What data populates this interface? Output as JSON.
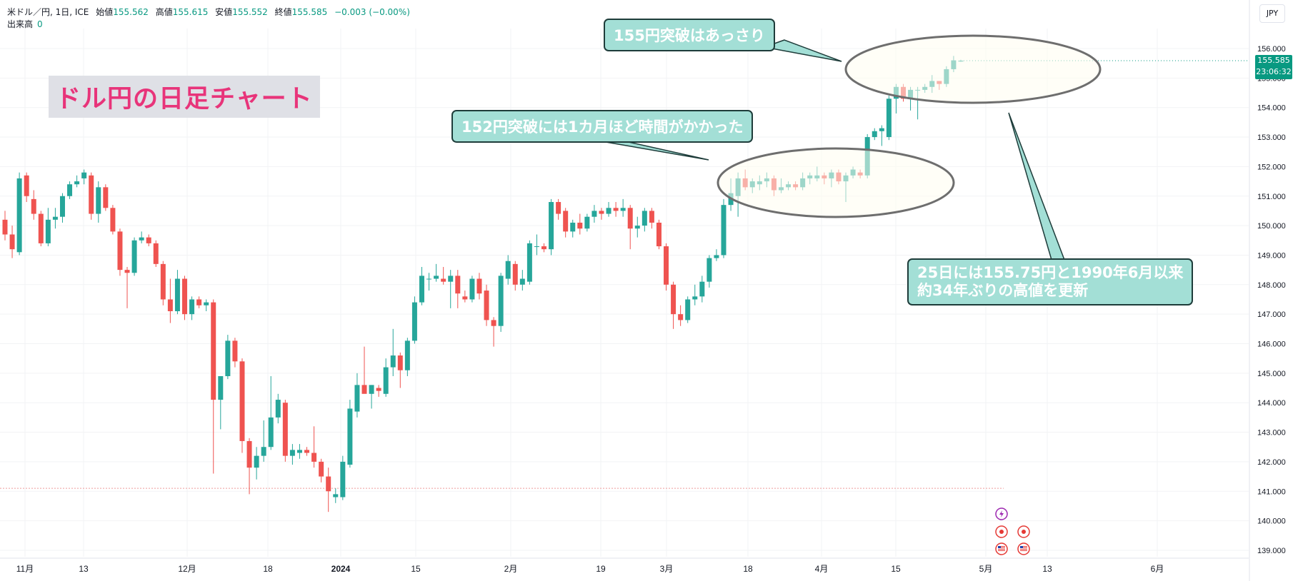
{
  "header": {
    "symbol": "米ドル／円, 1日, ICE",
    "open_label": "始値",
    "open": "155.562",
    "high_label": "高値",
    "high": "155.615",
    "low_label": "安値",
    "low": "155.552",
    "close_label": "終値",
    "close": "155.585",
    "change": "−0.003 (−0.00%)",
    "volume_label": "出来高",
    "volume": "0"
  },
  "currency_button": "JPY",
  "overlay_title": "ドル円の日足チャート",
  "callouts": {
    "c155": "155円突破はあっさり",
    "c152": "152円突破には1カ月ほど時間がかかった",
    "c25_line1": "25日には155.75円と1990年6月以来",
    "c25_line2": "約34年ぶりの高値を更新"
  },
  "last_price": {
    "price": "155.585",
    "countdown": "23:06:32"
  },
  "colors": {
    "up": "#26a69a",
    "down": "#ef5350",
    "price_tag": "#089981",
    "title": "#e8347a",
    "callout_bg": "#a3dfd6",
    "ellipse_fill": "#fffef0"
  },
  "event_icons": [
    "lightning-icon",
    "event-dot-icon",
    "event-dot-icon",
    "us-flag-icon",
    "us-flag-icon"
  ],
  "chart_data": {
    "type": "candlestick",
    "ylim": [
      138.6,
      156.6
    ],
    "yticks": [
      "156.000",
      "155.000",
      "154.000",
      "153.000",
      "152.000",
      "151.000",
      "150.000",
      "149.000",
      "148.000",
      "147.000",
      "146.000",
      "145.000",
      "144.000",
      "143.000",
      "142.000",
      "141.000",
      "140.000",
      "139.000"
    ],
    "xticks": [
      "11月",
      "13",
      "12月",
      "18",
      "2024",
      "15",
      "2月",
      "19",
      "3月",
      "18",
      "4月",
      "15",
      "5月",
      "13",
      "6月"
    ],
    "grid": true,
    "reference_line": 141.1,
    "candles": [
      {
        "o": 150.2,
        "h": 150.5,
        "l": 149.5,
        "c": 149.7
      },
      {
        "o": 149.7,
        "h": 150.0,
        "l": 148.9,
        "c": 149.2
      },
      {
        "o": 149.1,
        "h": 151.8,
        "l": 149.0,
        "c": 151.6
      },
      {
        "o": 151.7,
        "h": 151.8,
        "l": 150.8,
        "c": 151.0
      },
      {
        "o": 150.9,
        "h": 151.2,
        "l": 150.2,
        "c": 150.4
      },
      {
        "o": 150.4,
        "h": 150.5,
        "l": 149.3,
        "c": 149.4
      },
      {
        "o": 149.4,
        "h": 150.6,
        "l": 149.3,
        "c": 150.2
      },
      {
        "o": 150.2,
        "h": 150.6,
        "l": 149.9,
        "c": 150.3
      },
      {
        "o": 150.3,
        "h": 151.1,
        "l": 150.1,
        "c": 151.0
      },
      {
        "o": 151.0,
        "h": 151.5,
        "l": 150.9,
        "c": 151.4
      },
      {
        "o": 151.4,
        "h": 151.7,
        "l": 151.3,
        "c": 151.5
      },
      {
        "o": 151.6,
        "h": 151.9,
        "l": 151.4,
        "c": 151.8
      },
      {
        "o": 151.7,
        "h": 151.8,
        "l": 150.2,
        "c": 150.4
      },
      {
        "o": 150.4,
        "h": 151.5,
        "l": 150.1,
        "c": 151.3
      },
      {
        "o": 151.3,
        "h": 151.4,
        "l": 150.5,
        "c": 150.6
      },
      {
        "o": 150.6,
        "h": 150.7,
        "l": 149.7,
        "c": 149.8
      },
      {
        "o": 149.8,
        "h": 149.9,
        "l": 148.3,
        "c": 148.5
      },
      {
        "o": 148.5,
        "h": 148.6,
        "l": 147.2,
        "c": 148.4
      },
      {
        "o": 148.4,
        "h": 149.6,
        "l": 148.3,
        "c": 149.5
      },
      {
        "o": 149.5,
        "h": 149.8,
        "l": 149.4,
        "c": 149.6
      },
      {
        "o": 149.6,
        "h": 149.7,
        "l": 149.3,
        "c": 149.4
      },
      {
        "o": 149.4,
        "h": 149.5,
        "l": 148.6,
        "c": 148.7
      },
      {
        "o": 148.7,
        "h": 148.8,
        "l": 147.3,
        "c": 147.5
      },
      {
        "o": 147.5,
        "h": 148.2,
        "l": 146.7,
        "c": 147.1
      },
      {
        "o": 147.1,
        "h": 148.5,
        "l": 147.0,
        "c": 148.2
      },
      {
        "o": 148.2,
        "h": 148.3,
        "l": 146.8,
        "c": 147.0
      },
      {
        "o": 147.0,
        "h": 147.6,
        "l": 146.8,
        "c": 147.5
      },
      {
        "o": 147.5,
        "h": 147.6,
        "l": 147.2,
        "c": 147.3
      },
      {
        "o": 147.3,
        "h": 147.5,
        "l": 147.1,
        "c": 147.4
      },
      {
        "o": 147.4,
        "h": 147.5,
        "l": 141.6,
        "c": 144.1
      },
      {
        "o": 144.1,
        "h": 144.9,
        "l": 143.1,
        "c": 144.9
      },
      {
        "o": 144.9,
        "h": 146.3,
        "l": 144.8,
        "c": 146.1
      },
      {
        "o": 146.1,
        "h": 146.2,
        "l": 145.2,
        "c": 145.4
      },
      {
        "o": 145.4,
        "h": 145.5,
        "l": 142.3,
        "c": 142.7
      },
      {
        "o": 142.7,
        "h": 142.8,
        "l": 140.9,
        "c": 141.8
      },
      {
        "o": 141.8,
        "h": 142.5,
        "l": 141.4,
        "c": 142.2
      },
      {
        "o": 142.2,
        "h": 143.4,
        "l": 142.0,
        "c": 142.5
      },
      {
        "o": 142.5,
        "h": 144.9,
        "l": 142.4,
        "c": 143.5
      },
      {
        "o": 143.5,
        "h": 144.3,
        "l": 143.3,
        "c": 144.1
      },
      {
        "o": 144.0,
        "h": 144.1,
        "l": 142.0,
        "c": 142.2
      },
      {
        "o": 142.2,
        "h": 142.6,
        "l": 141.9,
        "c": 142.4
      },
      {
        "o": 142.3,
        "h": 142.6,
        "l": 142.1,
        "c": 142.4
      },
      {
        "o": 142.4,
        "h": 142.5,
        "l": 142.2,
        "c": 142.3
      },
      {
        "o": 142.3,
        "h": 143.2,
        "l": 141.8,
        "c": 142.0
      },
      {
        "o": 142.0,
        "h": 142.1,
        "l": 141.3,
        "c": 141.5
      },
      {
        "o": 141.5,
        "h": 141.8,
        "l": 140.3,
        "c": 141.0
      },
      {
        "o": 140.8,
        "h": 141.1,
        "l": 140.6,
        "c": 140.9
      },
      {
        "o": 140.8,
        "h": 142.2,
        "l": 140.7,
        "c": 142.0
      },
      {
        "o": 141.9,
        "h": 144.1,
        "l": 141.8,
        "c": 143.8
      },
      {
        "o": 143.7,
        "h": 145.0,
        "l": 143.5,
        "c": 144.6
      },
      {
        "o": 144.6,
        "h": 145.9,
        "l": 144.4,
        "c": 144.3
      },
      {
        "o": 144.3,
        "h": 144.6,
        "l": 143.8,
        "c": 144.6
      },
      {
        "o": 144.5,
        "h": 144.6,
        "l": 144.2,
        "c": 144.4
      },
      {
        "o": 144.3,
        "h": 145.5,
        "l": 144.2,
        "c": 145.2
      },
      {
        "o": 145.2,
        "h": 146.5,
        "l": 144.9,
        "c": 145.6
      },
      {
        "o": 145.6,
        "h": 145.7,
        "l": 144.5,
        "c": 145.1
      },
      {
        "o": 145.1,
        "h": 146.2,
        "l": 144.9,
        "c": 146.1
      },
      {
        "o": 146.1,
        "h": 147.6,
        "l": 146.0,
        "c": 147.4
      },
      {
        "o": 147.4,
        "h": 148.6,
        "l": 147.3,
        "c": 148.3
      },
      {
        "o": 148.2,
        "h": 148.4,
        "l": 147.8,
        "c": 148.2
      },
      {
        "o": 148.2,
        "h": 148.7,
        "l": 148.1,
        "c": 148.3
      },
      {
        "o": 148.2,
        "h": 148.6,
        "l": 148.0,
        "c": 148.1
      },
      {
        "o": 148.1,
        "h": 148.5,
        "l": 147.2,
        "c": 148.3
      },
      {
        "o": 148.3,
        "h": 148.5,
        "l": 147.2,
        "c": 147.7
      },
      {
        "o": 147.6,
        "h": 147.8,
        "l": 147.4,
        "c": 147.5
      },
      {
        "o": 147.5,
        "h": 148.3,
        "l": 147.4,
        "c": 148.2
      },
      {
        "o": 148.2,
        "h": 148.4,
        "l": 147.5,
        "c": 147.7
      },
      {
        "o": 147.8,
        "h": 148.0,
        "l": 146.6,
        "c": 146.8
      },
      {
        "o": 146.8,
        "h": 146.9,
        "l": 145.9,
        "c": 146.6
      },
      {
        "o": 146.6,
        "h": 148.4,
        "l": 146.4,
        "c": 148.3
      },
      {
        "o": 148.2,
        "h": 149.0,
        "l": 148.0,
        "c": 148.8
      },
      {
        "o": 148.7,
        "h": 148.8,
        "l": 147.8,
        "c": 148.0
      },
      {
        "o": 148.0,
        "h": 148.5,
        "l": 147.8,
        "c": 148.2
      },
      {
        "o": 148.1,
        "h": 149.5,
        "l": 148.0,
        "c": 149.4
      },
      {
        "o": 149.3,
        "h": 149.7,
        "l": 149.0,
        "c": 149.3
      },
      {
        "o": 149.3,
        "h": 149.4,
        "l": 149.1,
        "c": 149.2
      },
      {
        "o": 149.2,
        "h": 150.9,
        "l": 149.0,
        "c": 150.8
      },
      {
        "o": 150.8,
        "h": 150.9,
        "l": 150.2,
        "c": 150.4
      },
      {
        "o": 150.5,
        "h": 150.6,
        "l": 149.6,
        "c": 149.8
      },
      {
        "o": 149.8,
        "h": 150.2,
        "l": 149.6,
        "c": 150.1
      },
      {
        "o": 150.1,
        "h": 150.4,
        "l": 149.7,
        "c": 149.9
      },
      {
        "o": 149.9,
        "h": 150.4,
        "l": 149.8,
        "c": 150.3
      },
      {
        "o": 150.3,
        "h": 150.7,
        "l": 150.1,
        "c": 150.5
      },
      {
        "o": 150.5,
        "h": 150.6,
        "l": 150.2,
        "c": 150.4
      },
      {
        "o": 150.4,
        "h": 150.8,
        "l": 150.3,
        "c": 150.6
      },
      {
        "o": 150.6,
        "h": 150.8,
        "l": 150.3,
        "c": 150.5
      },
      {
        "o": 150.5,
        "h": 150.9,
        "l": 150.3,
        "c": 150.6
      },
      {
        "o": 150.6,
        "h": 150.7,
        "l": 149.2,
        "c": 149.9
      },
      {
        "o": 149.9,
        "h": 150.3,
        "l": 149.6,
        "c": 150.0
      },
      {
        "o": 150.0,
        "h": 150.6,
        "l": 149.8,
        "c": 150.5
      },
      {
        "o": 150.5,
        "h": 150.6,
        "l": 149.9,
        "c": 150.1
      },
      {
        "o": 150.1,
        "h": 150.2,
        "l": 149.2,
        "c": 149.3
      },
      {
        "o": 149.3,
        "h": 149.4,
        "l": 147.8,
        "c": 148.0
      },
      {
        "o": 148.0,
        "h": 148.1,
        "l": 146.5,
        "c": 147.0
      },
      {
        "o": 147.0,
        "h": 147.3,
        "l": 146.6,
        "c": 146.8
      },
      {
        "o": 146.8,
        "h": 147.6,
        "l": 146.7,
        "c": 147.5
      },
      {
        "o": 147.5,
        "h": 148.0,
        "l": 147.3,
        "c": 147.6
      },
      {
        "o": 147.6,
        "h": 148.3,
        "l": 147.4,
        "c": 148.1
      },
      {
        "o": 148.1,
        "h": 149.0,
        "l": 147.9,
        "c": 148.9
      },
      {
        "o": 148.9,
        "h": 149.2,
        "l": 148.8,
        "c": 149.0
      },
      {
        "o": 149.0,
        "h": 150.9,
        "l": 148.9,
        "c": 150.7
      },
      {
        "o": 150.7,
        "h": 151.6,
        "l": 150.5,
        "c": 151.1
      },
      {
        "o": 151.0,
        "h": 151.8,
        "l": 150.3,
        "c": 151.6
      },
      {
        "o": 151.6,
        "h": 151.9,
        "l": 151.2,
        "c": 151.3
      },
      {
        "o": 151.3,
        "h": 151.6,
        "l": 151.1,
        "c": 151.5
      },
      {
        "o": 151.4,
        "h": 151.7,
        "l": 151.2,
        "c": 151.5
      },
      {
        "o": 151.5,
        "h": 151.8,
        "l": 151.3,
        "c": 151.6
      },
      {
        "o": 151.6,
        "h": 151.7,
        "l": 151.0,
        "c": 151.2
      },
      {
        "o": 151.2,
        "h": 151.6,
        "l": 151.1,
        "c": 151.3
      },
      {
        "o": 151.3,
        "h": 151.5,
        "l": 151.2,
        "c": 151.4
      },
      {
        "o": 151.4,
        "h": 151.5,
        "l": 151.2,
        "c": 151.3
      },
      {
        "o": 151.3,
        "h": 151.8,
        "l": 151.2,
        "c": 151.6
      },
      {
        "o": 151.6,
        "h": 151.8,
        "l": 151.4,
        "c": 151.7
      },
      {
        "o": 151.6,
        "h": 152.0,
        "l": 151.5,
        "c": 151.7
      },
      {
        "o": 151.7,
        "h": 151.8,
        "l": 151.4,
        "c": 151.6
      },
      {
        "o": 151.6,
        "h": 151.9,
        "l": 151.3,
        "c": 151.8
      },
      {
        "o": 151.8,
        "h": 151.9,
        "l": 151.4,
        "c": 151.5
      },
      {
        "o": 151.5,
        "h": 151.8,
        "l": 150.8,
        "c": 151.7
      },
      {
        "o": 151.7,
        "h": 152.0,
        "l": 151.6,
        "c": 151.9
      },
      {
        "o": 151.8,
        "h": 151.9,
        "l": 151.6,
        "c": 151.7
      },
      {
        "o": 151.7,
        "h": 153.1,
        "l": 151.6,
        "c": 153.0
      },
      {
        "o": 153.0,
        "h": 153.3,
        "l": 152.9,
        "c": 153.2
      },
      {
        "o": 153.2,
        "h": 153.4,
        "l": 152.7,
        "c": 153.3
      },
      {
        "o": 153.0,
        "h": 154.4,
        "l": 152.9,
        "c": 154.3
      },
      {
        "o": 154.3,
        "h": 154.8,
        "l": 153.8,
        "c": 154.7
      },
      {
        "o": 154.7,
        "h": 154.8,
        "l": 154.2,
        "c": 154.3
      },
      {
        "o": 154.3,
        "h": 154.7,
        "l": 153.9,
        "c": 154.6
      },
      {
        "o": 154.6,
        "h": 154.7,
        "l": 153.6,
        "c": 154.6
      },
      {
        "o": 154.6,
        "h": 154.8,
        "l": 154.5,
        "c": 154.7
      },
      {
        "o": 154.7,
        "h": 155.1,
        "l": 154.5,
        "c": 154.9
      },
      {
        "o": 154.9,
        "h": 154.9,
        "l": 154.6,
        "c": 154.8
      },
      {
        "o": 154.8,
        "h": 155.4,
        "l": 154.7,
        "c": 155.3
      },
      {
        "o": 155.3,
        "h": 155.75,
        "l": 155.2,
        "c": 155.6
      },
      {
        "o": 155.56,
        "h": 155.62,
        "l": 155.55,
        "c": 155.59
      }
    ]
  }
}
